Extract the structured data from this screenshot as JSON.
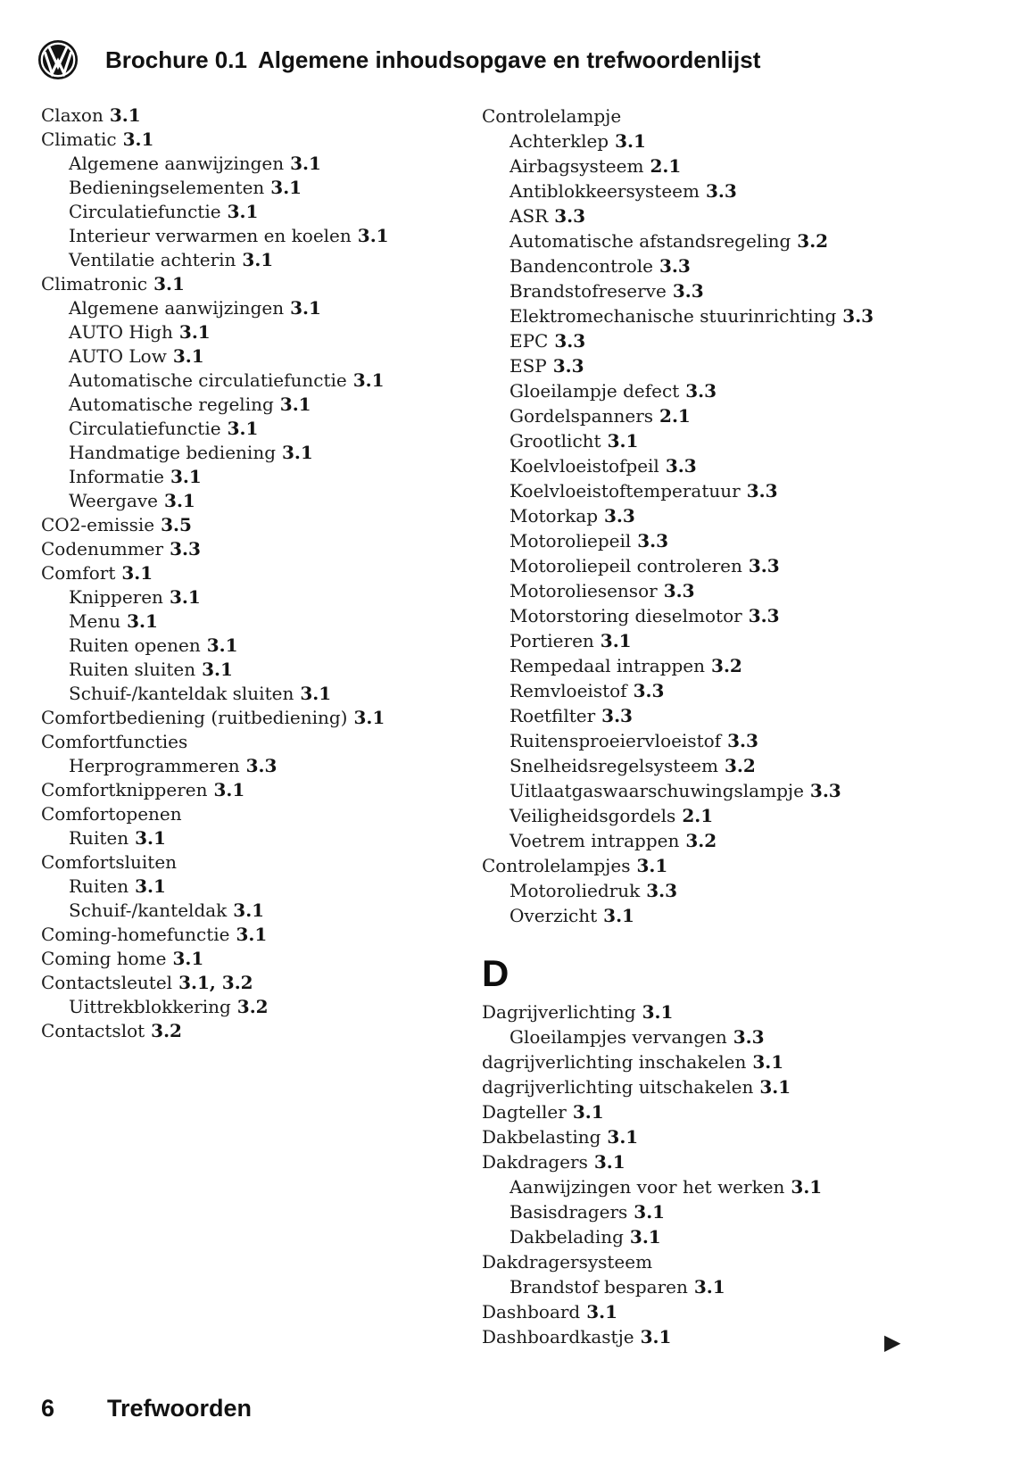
{
  "header": {
    "brochure_label": "Brochure 0.1",
    "title": "Algemene inhoudsopgave en trefwoordenlijst"
  },
  "icons": {
    "logo": "vw-roundel",
    "continuation_marker": "▶"
  },
  "footer": {
    "page_number": "6",
    "section_label": "Trefwoorden"
  },
  "index": {
    "left_column": [
      {
        "term": "Claxon",
        "pages": "3.1",
        "indent": 0
      },
      {
        "term": "Climatic",
        "pages": "3.1",
        "indent": 0
      },
      {
        "term": "Algemene aanwijzingen",
        "pages": "3.1",
        "indent": 1
      },
      {
        "term": "Bedieningselementen",
        "pages": "3.1",
        "indent": 1
      },
      {
        "term": "Circulatiefunctie",
        "pages": "3.1",
        "indent": 1
      },
      {
        "term": "Interieur verwarmen en koelen",
        "pages": "3.1",
        "indent": 1
      },
      {
        "term": "Ventilatie achterin",
        "pages": "3.1",
        "indent": 1
      },
      {
        "term": "Climatronic",
        "pages": "3.1",
        "indent": 0
      },
      {
        "term": "Algemene aanwijzingen",
        "pages": "3.1",
        "indent": 1
      },
      {
        "term": "AUTO High",
        "pages": "3.1",
        "indent": 1
      },
      {
        "term": "AUTO Low",
        "pages": "3.1",
        "indent": 1
      },
      {
        "term": "Automatische circulatiefunctie",
        "pages": "3.1",
        "indent": 1
      },
      {
        "term": "Automatische regeling",
        "pages": "3.1",
        "indent": 1
      },
      {
        "term": "Circulatiefunctie",
        "pages": "3.1",
        "indent": 1
      },
      {
        "term": "Handmatige bediening",
        "pages": "3.1",
        "indent": 1
      },
      {
        "term": "Informatie",
        "pages": "3.1",
        "indent": 1
      },
      {
        "term": "Weergave",
        "pages": "3.1",
        "indent": 1
      },
      {
        "term": "CO2-emissie",
        "pages": "3.5",
        "indent": 0
      },
      {
        "term": "Codenummer",
        "pages": "3.3",
        "indent": 0
      },
      {
        "term": "Comfort",
        "pages": "3.1",
        "indent": 0
      },
      {
        "term": "Knipperen",
        "pages": "3.1",
        "indent": 1
      },
      {
        "term": "Menu",
        "pages": "3.1",
        "indent": 1
      },
      {
        "term": "Ruiten openen",
        "pages": "3.1",
        "indent": 1
      },
      {
        "term": "Ruiten sluiten",
        "pages": "3.1",
        "indent": 1
      },
      {
        "term": "Schuif-/kanteldak sluiten",
        "pages": "3.1",
        "indent": 1
      },
      {
        "term": "Comfortbediening (ruitbediening)",
        "pages": "3.1",
        "indent": 0
      },
      {
        "term": "Comfortfuncties",
        "pages": "",
        "indent": 0
      },
      {
        "term": "Herprogrammeren",
        "pages": "3.3",
        "indent": 1
      },
      {
        "term": "Comfortknipperen",
        "pages": "3.1",
        "indent": 0
      },
      {
        "term": "Comfortopenen",
        "pages": "",
        "indent": 0
      },
      {
        "term": "Ruiten",
        "pages": "3.1",
        "indent": 1
      },
      {
        "term": "Comfortsluiten",
        "pages": "",
        "indent": 0
      },
      {
        "term": "Ruiten",
        "pages": "3.1",
        "indent": 1
      },
      {
        "term": "Schuif-/kanteldak",
        "pages": "3.1",
        "indent": 1
      },
      {
        "term": "Coming-homefunctie",
        "pages": "3.1",
        "indent": 0
      },
      {
        "term": "Coming home",
        "pages": "3.1",
        "indent": 0
      },
      {
        "term": "Contactsleutel",
        "pages": "3.1, 3.2",
        "indent": 0
      },
      {
        "term": "Uittrekblokkering",
        "pages": "3.2",
        "indent": 1
      },
      {
        "term": "Contactslot",
        "pages": "3.2",
        "indent": 0
      }
    ],
    "right_column": [
      {
        "term": "Controlelampje",
        "pages": "",
        "indent": 0
      },
      {
        "term": "Achterklep",
        "pages": "3.1",
        "indent": 1
      },
      {
        "term": "Airbagsysteem",
        "pages": "2.1",
        "indent": 1
      },
      {
        "term": "Antiblokkeersysteem",
        "pages": "3.3",
        "indent": 1
      },
      {
        "term": "ASR",
        "pages": "3.3",
        "indent": 1
      },
      {
        "term": "Automatische afstandsregeling",
        "pages": "3.2",
        "indent": 1
      },
      {
        "term": "Bandencontrole",
        "pages": "3.3",
        "indent": 1
      },
      {
        "term": "Brandstofreserve",
        "pages": "3.3",
        "indent": 1
      },
      {
        "term": "Elektromechanische stuurinrichting",
        "pages": "3.3",
        "indent": 1
      },
      {
        "term": "EPC",
        "pages": "3.3",
        "indent": 1
      },
      {
        "term": "ESP",
        "pages": "3.3",
        "indent": 1
      },
      {
        "term": "Gloeilampje defect",
        "pages": "3.3",
        "indent": 1
      },
      {
        "term": "Gordelspanners",
        "pages": "2.1",
        "indent": 1
      },
      {
        "term": "Grootlicht",
        "pages": "3.1",
        "indent": 1
      },
      {
        "term": "Koelvloeistofpeil",
        "pages": "3.3",
        "indent": 1
      },
      {
        "term": "Koelvloeistoftemperatuur",
        "pages": "3.3",
        "indent": 1
      },
      {
        "term": "Motorkap",
        "pages": "3.3",
        "indent": 1
      },
      {
        "term": "Motoroliepeil",
        "pages": "3.3",
        "indent": 1
      },
      {
        "term": "Motoroliepeil controleren",
        "pages": "3.3",
        "indent": 1
      },
      {
        "term": "Motoroliesensor",
        "pages": "3.3",
        "indent": 1
      },
      {
        "term": "Motorstoring dieselmotor",
        "pages": "3.3",
        "indent": 1
      },
      {
        "term": "Portieren",
        "pages": "3.1",
        "indent": 1
      },
      {
        "term": "Rempedaal intrappen",
        "pages": "3.2",
        "indent": 1
      },
      {
        "term": "Remvloeistof",
        "pages": "3.3",
        "indent": 1
      },
      {
        "term": "Roetfilter",
        "pages": "3.3",
        "indent": 1
      },
      {
        "term": "Ruitensproeiervloeistof",
        "pages": "3.3",
        "indent": 1
      },
      {
        "term": "Snelheidsregelsysteem",
        "pages": "3.2",
        "indent": 1
      },
      {
        "term": "Uitlaatgaswaarschuwingslampje",
        "pages": "3.3",
        "indent": 1
      },
      {
        "term": "Veiligheidsgordels",
        "pages": "2.1",
        "indent": 1
      },
      {
        "term": "Voetrem intrappen",
        "pages": "3.2",
        "indent": 1
      },
      {
        "term": "Controlelampjes",
        "pages": "3.1",
        "indent": 0
      },
      {
        "term": "Motoroliedruk",
        "pages": "3.3",
        "indent": 1
      },
      {
        "term": "Overzicht",
        "pages": "3.1",
        "indent": 1
      },
      {
        "section": "D"
      },
      {
        "term": "Dagrijverlichting",
        "pages": "3.1",
        "indent": 0
      },
      {
        "term": "Gloeilampjes vervangen",
        "pages": "3.3",
        "indent": 1
      },
      {
        "term": "dagrijverlichting inschakelen",
        "pages": "3.1",
        "indent": 0
      },
      {
        "term": "dagrijverlichting uitschakelen",
        "pages": "3.1",
        "indent": 0
      },
      {
        "term": "Dagteller",
        "pages": "3.1",
        "indent": 0
      },
      {
        "term": "Dakbelasting",
        "pages": "3.1",
        "indent": 0
      },
      {
        "term": "Dakdragers",
        "pages": "3.1",
        "indent": 0
      },
      {
        "term": "Aanwijzingen voor het werken",
        "pages": "3.1",
        "indent": 1
      },
      {
        "term": "Basisdragers",
        "pages": "3.1",
        "indent": 1
      },
      {
        "term": "Dakbelading",
        "pages": "3.1",
        "indent": 1
      },
      {
        "term": "Dakdragersysteem",
        "pages": "",
        "indent": 0
      },
      {
        "term": "Brandstof besparen",
        "pages": "3.1",
        "indent": 1
      },
      {
        "term": "Dashboard",
        "pages": "3.1",
        "indent": 0
      },
      {
        "term": "Dashboardkastje",
        "pages": "3.1",
        "indent": 0
      }
    ]
  }
}
